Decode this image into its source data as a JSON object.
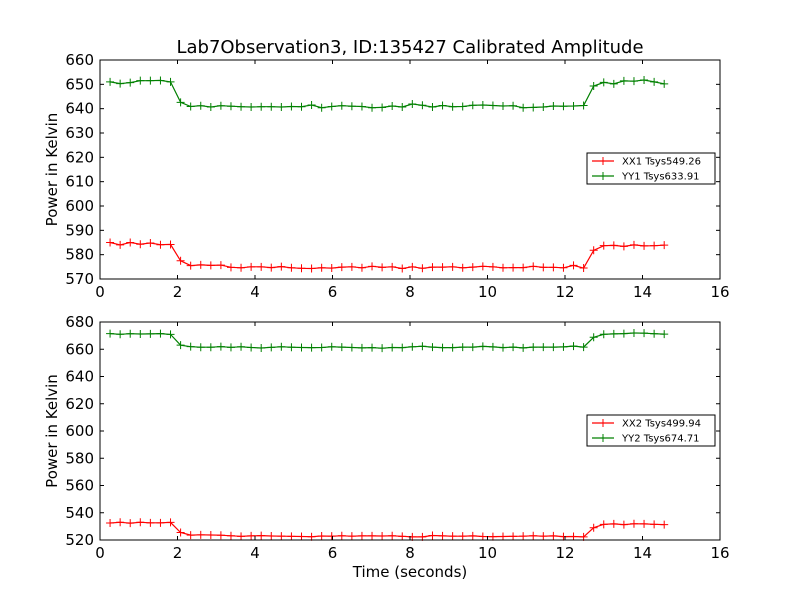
{
  "title": "Lab7Observation3, ID:135427 Calibrated Amplitude",
  "xlabel": "Time (seconds)",
  "colors": {
    "xx": "#ff0000",
    "yy": "#008000"
  },
  "chart_data": [
    {
      "type": "line",
      "title": "Lab7Observation3, ID:135427 Calibrated Amplitude",
      "xlabel": "",
      "ylabel": "Power in Kelvin",
      "xlim": [
        0,
        16
      ],
      "ylim": [
        570,
        660
      ],
      "xticks": [
        0,
        2,
        4,
        6,
        8,
        10,
        12,
        14,
        16
      ],
      "yticks": [
        570,
        580,
        590,
        600,
        610,
        620,
        630,
        640,
        650,
        660
      ],
      "grid": false,
      "legend": "center-right",
      "x": [
        0.26,
        0.52,
        0.78,
        1.04,
        1.3,
        1.56,
        1.82,
        2.08,
        2.34,
        2.6,
        2.86,
        3.12,
        3.38,
        3.64,
        3.9,
        4.16,
        4.42,
        4.68,
        4.94,
        5.2,
        5.46,
        5.72,
        5.98,
        6.24,
        6.5,
        6.76,
        7.02,
        7.28,
        7.54,
        7.8,
        8.06,
        8.32,
        8.58,
        8.84,
        9.1,
        9.36,
        9.62,
        9.88,
        10.14,
        10.4,
        10.66,
        10.92,
        11.18,
        11.44,
        11.7,
        11.96,
        12.22,
        12.48,
        12.74,
        13.0,
        13.26,
        13.52,
        13.78,
        14.04,
        14.3,
        14.56
      ],
      "series": [
        {
          "name": "XX1 Tsys549.26",
          "color": "#ff0000",
          "values": [
            585.0,
            584.0,
            585.0,
            584.3,
            584.8,
            584.1,
            584.2,
            577.5,
            575.5,
            575.8,
            575.6,
            575.7,
            574.8,
            574.6,
            575.0,
            575.0,
            574.7,
            575.1,
            574.6,
            574.4,
            574.3,
            574.6,
            574.5,
            574.9,
            575.0,
            574.6,
            575.2,
            574.8,
            575.0,
            574.3,
            575.0,
            574.4,
            574.9,
            574.9,
            575.0,
            574.6,
            574.9,
            575.2,
            575.0,
            574.6,
            574.7,
            574.7,
            575.2,
            574.8,
            574.8,
            574.6,
            575.6,
            574.5,
            581.8,
            583.7,
            583.8,
            583.4,
            584.0,
            583.6,
            583.7,
            583.9
          ]
        },
        {
          "name": "YY1 Tsys633.91",
          "color": "#008000",
          "values": [
            651.0,
            650.3,
            650.7,
            651.5,
            651.5,
            651.6,
            651.0,
            642.6,
            640.9,
            641.2,
            640.7,
            641.2,
            641.0,
            640.8,
            640.7,
            640.8,
            640.8,
            640.7,
            640.9,
            640.8,
            641.5,
            640.4,
            640.9,
            641.2,
            641.0,
            640.9,
            640.4,
            640.5,
            641.1,
            640.7,
            641.9,
            641.4,
            640.7,
            641.3,
            640.8,
            640.9,
            641.4,
            641.5,
            641.3,
            641.1,
            641.2,
            640.4,
            640.5,
            640.7,
            641.1,
            641.0,
            641.1,
            641.3,
            649.3,
            650.8,
            650.2,
            651.4,
            651.3,
            651.8,
            651.0,
            650.2
          ]
        }
      ]
    },
    {
      "type": "line",
      "title": "",
      "xlabel": "Time (seconds)",
      "ylabel": "Power in Kelvin",
      "xlim": [
        0,
        16
      ],
      "ylim": [
        520,
        680
      ],
      "xticks": [
        0,
        2,
        4,
        6,
        8,
        10,
        12,
        14,
        16
      ],
      "yticks": [
        520,
        540,
        560,
        580,
        600,
        620,
        640,
        660,
        680
      ],
      "grid": false,
      "legend": "center-right",
      "x": [
        0.26,
        0.52,
        0.78,
        1.04,
        1.3,
        1.56,
        1.82,
        2.08,
        2.34,
        2.6,
        2.86,
        3.12,
        3.38,
        3.64,
        3.9,
        4.16,
        4.42,
        4.68,
        4.94,
        5.2,
        5.46,
        5.72,
        5.98,
        6.24,
        6.5,
        6.76,
        7.02,
        7.28,
        7.54,
        7.8,
        8.06,
        8.32,
        8.58,
        8.84,
        9.1,
        9.36,
        9.62,
        9.88,
        10.14,
        10.4,
        10.66,
        10.92,
        11.18,
        11.44,
        11.7,
        11.96,
        12.22,
        12.48,
        12.74,
        13.0,
        13.26,
        13.52,
        13.78,
        14.04,
        14.3,
        14.56
      ],
      "series": [
        {
          "name": "XX2 Tsys499.94",
          "color": "#ff0000",
          "values": [
            532.5,
            533.0,
            532.4,
            533.0,
            532.6,
            532.6,
            532.9,
            525.5,
            523.6,
            523.8,
            523.7,
            523.5,
            523.1,
            522.7,
            523.0,
            523.2,
            522.9,
            522.8,
            522.7,
            522.6,
            522.4,
            522.9,
            522.8,
            523.1,
            522.8,
            523.0,
            523.0,
            522.9,
            523.1,
            522.7,
            522.3,
            522.3,
            523.3,
            523.0,
            522.8,
            522.8,
            523.0,
            522.6,
            522.5,
            522.6,
            522.7,
            522.8,
            523.1,
            522.8,
            523.0,
            522.5,
            522.6,
            522.3,
            529.0,
            531.5,
            531.8,
            531.3,
            531.9,
            531.8,
            531.5,
            531.3
          ]
        },
        {
          "name": "YY2 Tsys674.71",
          "color": "#008000",
          "values": [
            671.5,
            671.0,
            671.4,
            671.2,
            671.3,
            671.5,
            670.9,
            663.0,
            661.9,
            661.5,
            661.5,
            661.9,
            661.4,
            661.8,
            661.3,
            660.9,
            661.4,
            661.8,
            661.5,
            661.3,
            661.2,
            661.3,
            661.8,
            661.6,
            661.3,
            661.0,
            661.2,
            660.8,
            661.3,
            661.2,
            661.8,
            662.2,
            661.6,
            661.2,
            661.2,
            661.6,
            661.6,
            662.1,
            661.7,
            661.2,
            661.6,
            661.0,
            661.6,
            661.6,
            661.6,
            661.7,
            662.3,
            661.6,
            668.8,
            671.0,
            671.3,
            671.5,
            671.9,
            671.8,
            671.4,
            671.1
          ]
        }
      ]
    }
  ]
}
